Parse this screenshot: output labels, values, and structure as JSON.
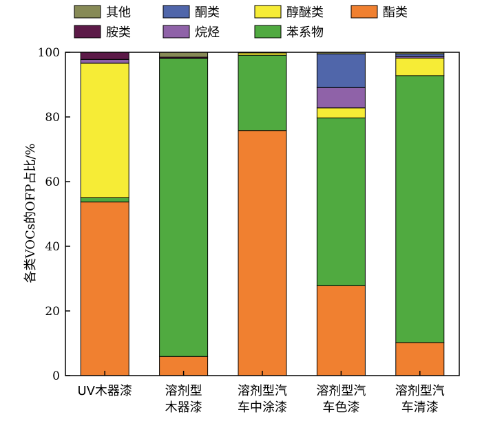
{
  "chart_data": {
    "type": "bar",
    "stacked": true,
    "ylabel": "各类VOCs的OFP占比/%",
    "ylim": [
      0,
      100
    ],
    "yticks": [
      "0",
      "20",
      "40",
      "60",
      "80",
      "100"
    ],
    "categories": [
      [
        "UV木器漆"
      ],
      [
        "溶剂型",
        "木器漆"
      ],
      [
        "溶剂型汽",
        "车中涂漆"
      ],
      [
        "溶剂型汽",
        "车色漆"
      ],
      [
        "溶剂型汽",
        "车清漆"
      ]
    ],
    "legend": {
      "position": "top",
      "columns": 4
    },
    "series": [
      {
        "name": "酯类",
        "color": "#f08030",
        "values": [
          53.7,
          5.9,
          75.8,
          27.8,
          10.2
        ]
      },
      {
        "name": "苯系物",
        "color": "#50aa40",
        "values": [
          1.3,
          92.2,
          23.3,
          51.9,
          82.6
        ]
      },
      {
        "name": "醇醚类",
        "color": "#f6ec36",
        "values": [
          41.6,
          0.0,
          0.7,
          3.1,
          5.4
        ]
      },
      {
        "name": "烷烃",
        "color": "#8f62a8",
        "values": [
          1.2,
          0.0,
          0.0,
          6.3,
          0.5
        ]
      },
      {
        "name": "酮类",
        "color": "#5066aa",
        "values": [
          0.0,
          0.0,
          0.0,
          10.4,
          0.8
        ]
      },
      {
        "name": "胺类",
        "color": "#5c1a48",
        "values": [
          2.2,
          0.4,
          0.0,
          0.0,
          0.0
        ]
      },
      {
        "name": "其他",
        "color": "#878a56",
        "values": [
          0.0,
          1.5,
          0.2,
          0.5,
          0.5
        ]
      }
    ],
    "legend_order": [
      "其他",
      "酮类",
      "醇醚类",
      "酯类",
      "胺类",
      "烷烃",
      "苯系物"
    ]
  }
}
